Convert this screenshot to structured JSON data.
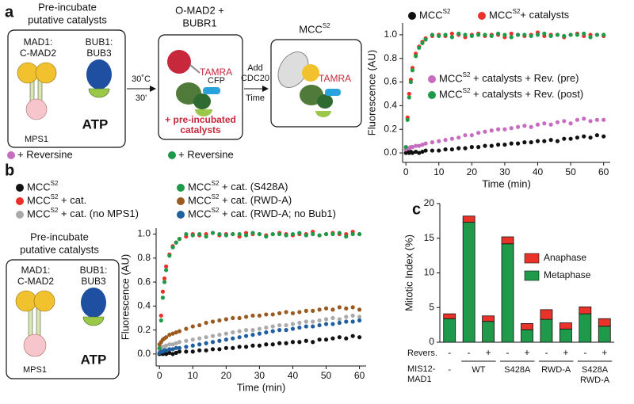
{
  "panel_a": {
    "label": "a",
    "catalysts_title": [
      "Pre-incubate",
      "putative catalysts"
    ],
    "mad1": [
      "MAD1:",
      "C-MAD2"
    ],
    "bub1": [
      "BUB1:",
      "BUB3"
    ],
    "mps1": "MPS1",
    "atp": "ATP",
    "reversine_pre": "+ Reversine",
    "reversine_post": "+ Reversine",
    "incubation": [
      "30˚C",
      "30'"
    ],
    "omad2_title": [
      "O-MAD2 +",
      "BUBR1"
    ],
    "tamra_1": "TAMRA",
    "cfp": "CFP",
    "preincubated": [
      "+ pre-incubated",
      "catalysts"
    ],
    "cdc20": [
      "Add",
      "CDC20"
    ],
    "time": "Time",
    "mcc_title": "MCCS2",
    "tamra_2": "TAMRA"
  },
  "panel_b": {
    "label": "b",
    "catalysts_title": [
      "Pre-incubate",
      "putative catalysts"
    ],
    "mad1": [
      "MAD1:",
      "C-MAD2"
    ],
    "bub1": [
      "BUB1:",
      "BUB3"
    ],
    "mps1": "MPS1",
    "atp": "ATP"
  },
  "panel_c": {
    "label": "c"
  },
  "chart_data": [
    {
      "type": "scatter",
      "xlabel": "Time (min)",
      "ylabel": "Fluorescence (AU)",
      "xlim": [
        -1,
        62
      ],
      "ylim": [
        -0.08,
        1.1
      ],
      "xticks": [
        0,
        10,
        20,
        30,
        40,
        50,
        60
      ],
      "yticks": [
        {
          "value": 0,
          "label": "0.0"
        },
        0.2,
        0.4,
        0.6,
        0.8,
        {
          "value": 1,
          "label": "1.0"
        }
      ],
      "x": [
        0,
        0.5,
        1,
        1.5,
        2,
        3,
        4,
        5,
        6,
        8,
        10,
        12,
        14,
        16,
        18,
        20,
        22,
        24,
        26,
        28,
        30,
        32,
        34,
        36,
        38,
        40,
        42,
        44,
        46,
        48,
        50,
        52,
        54,
        56,
        58,
        60
      ],
      "series": [
        {
          "name": "MCCS2",
          "color": "#111111",
          "values": [
            0,
            0.01,
            0,
            0.01,
            0,
            0.01,
            0,
            0.01,
            0.02,
            0.02,
            0.02,
            0.03,
            0.03,
            0.04,
            0.04,
            0.05,
            0.05,
            0.06,
            0.06,
            0.07,
            0.07,
            0.08,
            0.08,
            0.09,
            0.09,
            0.1,
            0.1,
            0.11,
            0.1,
            0.12,
            0.12,
            0.13,
            0.14,
            0.13,
            0.15,
            0.14
          ]
        },
        {
          "name": "MCCS2+ catalysts",
          "color": "#e8322a",
          "values": [
            0.03,
            0.3,
            0.5,
            0.62,
            0.72,
            0.84,
            0.9,
            0.94,
            0.97,
            0.99,
            1.0,
            0.99,
            1.01,
            1.0,
            0.98,
            1.0,
            1.01,
            0.99,
            1.0,
            1.0,
            0.98,
            1.01,
            1.0,
            0.99,
            1.0,
            1.02,
            0.99,
            1.0,
            1.0,
            0.98,
            1.0,
            1.01,
            0.99,
            1.0,
            1.0,
            0.99
          ]
        },
        {
          "name": "MCCS2 + catalysts + Rev. (pre)",
          "color": "#c86cc0",
          "values": [
            0.03,
            0.04,
            0.04,
            0.05,
            0.05,
            0.06,
            0.06,
            0.07,
            0.08,
            0.09,
            0.1,
            0.11,
            0.12,
            0.13,
            0.15,
            0.15,
            0.17,
            0.18,
            0.19,
            0.2,
            0.2,
            0.21,
            0.22,
            0.23,
            0.22,
            0.24,
            0.25,
            0.24,
            0.26,
            0.27,
            0.25,
            0.28,
            0.29,
            0.27,
            0.28,
            0.28
          ]
        },
        {
          "name": "MCCS2 + catalysts + Rev. (post)",
          "color": "#1e9a4a",
          "values": [
            0.05,
            0.28,
            0.47,
            0.6,
            0.7,
            0.82,
            0.89,
            0.93,
            0.96,
            1.0,
            0.99,
            1.0,
            0.98,
            1.01,
            1.0,
            0.99,
            1.0,
            1.0,
            0.99,
            1.01,
            1.0,
            0.98,
            1.0,
            1.0,
            0.99,
            1.0,
            1.01,
            0.99,
            1.0,
            0.99,
            1.0,
            1.0,
            1.01,
            0.98,
            1.0,
            1.0
          ]
        }
      ]
    },
    {
      "type": "scatter",
      "xlabel": "Time (min)",
      "ylabel": "Fluorescence (AU)",
      "xlim": [
        -1,
        62
      ],
      "ylim": [
        -0.1,
        1.05
      ],
      "xticks": [
        0,
        10,
        20,
        30,
        40,
        50,
        60
      ],
      "yticks": [
        {
          "value": 0,
          "label": "0.0"
        },
        0.2,
        0.4,
        0.6,
        0.8,
        {
          "value": 1,
          "label": "1.0"
        }
      ],
      "x": [
        0,
        0.5,
        1,
        1.5,
        2,
        3,
        4,
        5,
        6,
        8,
        10,
        12,
        14,
        16,
        18,
        20,
        22,
        24,
        26,
        28,
        30,
        32,
        34,
        36,
        38,
        40,
        42,
        44,
        46,
        48,
        50,
        52,
        54,
        56,
        58,
        60
      ],
      "series": [
        {
          "name": "MCCS2",
          "color": "#111111",
          "values": [
            0,
            0.01,
            0,
            0.01,
            0,
            0.01,
            0,
            0.01,
            0.02,
            0.02,
            0.02,
            0.03,
            0.03,
            0.04,
            0.04,
            0.05,
            0.05,
            0.06,
            0.06,
            0.07,
            0.07,
            0.08,
            0.08,
            0.09,
            0.09,
            0.1,
            0.1,
            0.11,
            0.1,
            0.12,
            0.12,
            0.13,
            0.14,
            0.13,
            0.15,
            0.14
          ]
        },
        {
          "name": "MCCS2 + cat.",
          "color": "#e8322a",
          "values": [
            0.04,
            0.32,
            0.52,
            0.63,
            0.73,
            0.83,
            0.9,
            0.93,
            0.96,
            0.98,
            1.0,
            0.99,
            1.0,
            1.01,
            0.99,
            1.0,
            1.0,
            0.98,
            1.01,
            1.0,
            1.0,
            0.99,
            1.0,
            1.01,
            1.0,
            0.99,
            1.0,
            1.0,
            1.02,
            0.99,
            1.0,
            1.01,
            1.0,
            1.0,
            1.02,
            1.0
          ]
        },
        {
          "name": "MCCS2 + cat. (no MPS1)",
          "color": "#aaaaaa",
          "values": [
            0.04,
            0.05,
            0.06,
            0.06,
            0.07,
            0.08,
            0.08,
            0.09,
            0.1,
            0.11,
            0.12,
            0.13,
            0.14,
            0.15,
            0.16,
            0.17,
            0.18,
            0.19,
            0.2,
            0.2,
            0.21,
            0.22,
            0.23,
            0.24,
            0.24,
            0.25,
            0.26,
            0.27,
            0.27,
            0.28,
            0.29,
            0.3,
            0.29,
            0.31,
            0.32,
            0.31
          ]
        },
        {
          "name": "MCCS2 + cat. (S428A)",
          "color": "#1e9a4a",
          "values": [
            0.05,
            0.28,
            0.47,
            0.6,
            0.7,
            0.82,
            0.89,
            0.93,
            0.96,
            1.0,
            0.99,
            1.0,
            0.98,
            1.01,
            1.0,
            0.99,
            1.0,
            1.0,
            0.99,
            1.01,
            1.0,
            0.98,
            1.0,
            1.0,
            0.99,
            1.0,
            1.01,
            0.99,
            1.0,
            0.99,
            1.0,
            1.0,
            1.01,
            0.98,
            1.0,
            1.0
          ]
        },
        {
          "name": "MCCS2 + cat. (RWD-A)",
          "color": "#9a5a20",
          "values": [
            0.08,
            0.1,
            0.12,
            0.13,
            0.14,
            0.16,
            0.17,
            0.18,
            0.19,
            0.21,
            0.23,
            0.24,
            0.26,
            0.27,
            0.28,
            0.29,
            0.3,
            0.3,
            0.31,
            0.32,
            0.32,
            0.33,
            0.33,
            0.34,
            0.35,
            0.34,
            0.35,
            0.36,
            0.36,
            0.37,
            0.38,
            0.37,
            0.39,
            0.38,
            0.39,
            0.37
          ]
        },
        {
          "name": "MCCS2 + cat. (RWD-A; no Bub1)",
          "color": "#1f5fa0",
          "values": [
            0.01,
            0.02,
            0.02,
            0.03,
            0.03,
            0.04,
            0.04,
            0.05,
            0.05,
            0.06,
            0.07,
            0.08,
            0.09,
            0.1,
            0.11,
            0.12,
            0.13,
            0.14,
            0.15,
            0.16,
            0.17,
            0.18,
            0.19,
            0.2,
            0.2,
            0.21,
            0.22,
            0.23,
            0.23,
            0.24,
            0.25,
            0.25,
            0.26,
            0.27,
            0.27,
            0.28
          ]
        }
      ]
    },
    {
      "type": "stacked_bar",
      "ylabel": "Mitotic Index (%)",
      "ylim": [
        0,
        20
      ],
      "yticks": [
        0,
        5,
        10,
        15,
        20
      ],
      "row_label": "Revers.",
      "categories": [
        "-",
        "-",
        "+",
        "-",
        "+",
        "-",
        "+",
        "-",
        "+"
      ],
      "group_row_label": [
        "MIS12-",
        "MAD1"
      ],
      "group_labels": [
        "-",
        "WT",
        "S428A",
        "RWD-A",
        [
          "S428A",
          "RWD-A"
        ]
      ],
      "series": [
        {
          "name": "Metaphase",
          "color": "#1e9a4a",
          "values": [
            3.4,
            17.3,
            3.0,
            14.2,
            1.8,
            3.3,
            1.9,
            4.1,
            2.3
          ]
        },
        {
          "name": "Anaphase",
          "color": "#e8322a",
          "values": [
            0.7,
            0.9,
            0.8,
            1.0,
            0.9,
            1.4,
            0.9,
            1.0,
            1.1
          ]
        }
      ]
    }
  ]
}
